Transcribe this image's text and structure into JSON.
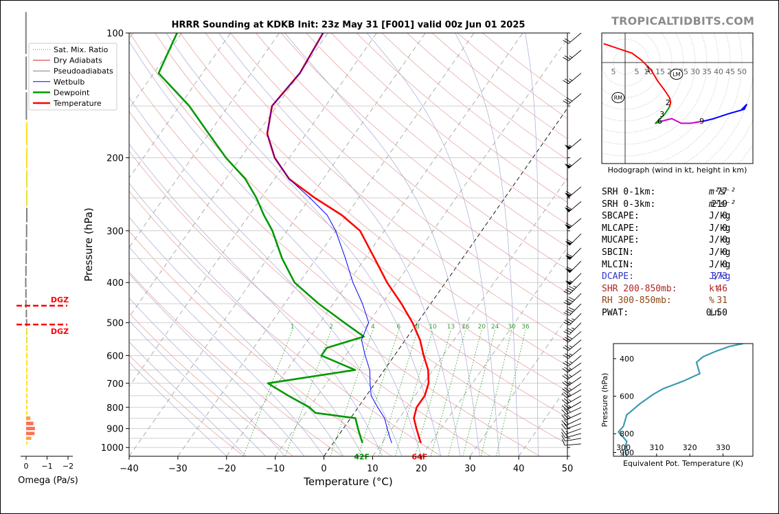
{
  "brand": "TROPICALTIDBITS.COM",
  "chart_data": [
    {
      "type": "line",
      "name": "skew-t",
      "title": "HRRR Sounding at KDKB Init: 23z May 31 [F001] valid 00z Jun 01 2025",
      "xlabel": "Temperature (°C)",
      "ylabel": "Pressure (hPa)",
      "xlim": [
        -40,
        50
      ],
      "ylim": [
        1050,
        100
      ],
      "y_scale": "log",
      "skew": true,
      "x_ticks": [
        -40,
        -30,
        -20,
        -10,
        0,
        10,
        20,
        30,
        40,
        50
      ],
      "x_tick_labels": [
        "−40",
        "−30",
        "−20",
        "−10",
        "0",
        "10",
        "20",
        "30",
        "40",
        "50"
      ],
      "y_ticks": [
        100,
        200,
        300,
        400,
        500,
        600,
        700,
        800,
        900,
        1000
      ],
      "y_tick_labels": [
        "100",
        "200",
        "300",
        "400",
        "500",
        "600",
        "700",
        "800",
        "900",
        "1000"
      ],
      "legend": {
        "position": "top-left",
        "entries": [
          {
            "label": "Sat. Mix. Ratio",
            "color": "#2ca02c",
            "style": "dotted"
          },
          {
            "label": "Dry Adiabats",
            "color": "#d62728",
            "style": "solid-thin"
          },
          {
            "label": "Pseudoadiabats",
            "color": "#7f7f7f",
            "style": "solid-thin"
          },
          {
            "label": "Wetbulb",
            "color": "#0000ff",
            "style": "solid"
          },
          {
            "label": "Dewpoint",
            "color": "#009900",
            "style": "thick"
          },
          {
            "label": "Temperature",
            "color": "#ff0000",
            "style": "thick"
          }
        ]
      },
      "mixing_ratio_labels": [
        "1",
        "2",
        "4",
        "6",
        "8",
        "10",
        "13",
        "16",
        "20",
        "24",
        "30",
        "36"
      ],
      "mixing_ratio_values": [
        1,
        2,
        4,
        6,
        8,
        10,
        13,
        16,
        20,
        24,
        30,
        36
      ],
      "surface_temp_label": "64F",
      "surface_dewpoint_label": "42F",
      "series": [
        {
          "name": "Temperature",
          "color": "#ff0000",
          "points": [
            [
              18,
              975
            ],
            [
              17,
              950
            ],
            [
              15,
              900
            ],
            [
              13,
              850
            ],
            [
              12,
              800
            ],
            [
              12,
              750
            ],
            [
              11,
              700
            ],
            [
              9,
              650
            ],
            [
              6,
              600
            ],
            [
              3,
              550
            ],
            [
              -1,
              500
            ],
            [
              -6,
              450
            ],
            [
              -12,
              400
            ],
            [
              -18,
              350
            ],
            [
              -25,
              300
            ],
            [
              -31,
              275
            ],
            [
              -39,
              250
            ],
            [
              -47,
              225
            ],
            [
              -53,
              200
            ],
            [
              -58,
              175
            ],
            [
              -61,
              150
            ],
            [
              -60,
              125
            ],
            [
              -61,
              100
            ]
          ]
        },
        {
          "name": "Dewpoint",
          "color": "#009900",
          "points": [
            [
              6,
              975
            ],
            [
              5,
              950
            ],
            [
              3,
              900
            ],
            [
              1,
              850
            ],
            [
              -8,
              825
            ],
            [
              -10,
              800
            ],
            [
              -16,
              750
            ],
            [
              -22,
              700
            ],
            [
              -6,
              650
            ],
            [
              -15,
              600
            ],
            [
              -15,
              575
            ],
            [
              -9,
              540
            ],
            [
              -15,
              500
            ],
            [
              -23,
              450
            ],
            [
              -31,
              400
            ],
            [
              -37,
              350
            ],
            [
              -43,
              300
            ],
            [
              -47,
              275
            ],
            [
              -51,
              250
            ],
            [
              -56,
              225
            ],
            [
              -63,
              200
            ],
            [
              -70,
              175
            ],
            [
              -78,
              150
            ],
            [
              -89,
              125
            ],
            [
              -91,
              100
            ]
          ]
        },
        {
          "name": "Wetbulb",
          "color": "#0000ff",
          "points": [
            [
              12,
              975
            ],
            [
              11,
              950
            ],
            [
              9,
              900
            ],
            [
              7,
              850
            ],
            [
              4,
              800
            ],
            [
              1,
              750
            ],
            [
              -1,
              700
            ],
            [
              -3,
              650
            ],
            [
              -6,
              600
            ],
            [
              -9,
              550
            ],
            [
              -10,
              500
            ],
            [
              -14,
              450
            ],
            [
              -19,
              400
            ],
            [
              -24,
              350
            ],
            [
              -30,
              300
            ],
            [
              -34,
              275
            ],
            [
              -40,
              250
            ],
            [
              -47,
              225
            ],
            [
              -53,
              200
            ],
            [
              -58,
              175
            ],
            [
              -61,
              150
            ],
            [
              -60,
              125
            ],
            [
              -61,
              100
            ]
          ]
        }
      ],
      "dgz_label": "DGZ",
      "dgz_pressures": [
        455,
        505
      ]
    },
    {
      "type": "bar",
      "name": "omega",
      "xlabel": "Omega (Pa/s)",
      "x_ticks": [
        0,
        -1,
        -2
      ],
      "x_tick_labels": [
        "0",
        "−1",
        "−2"
      ],
      "xlim": [
        0.2,
        -2.5
      ],
      "pressures": [
        975,
        950,
        925,
        900,
        875,
        850,
        825,
        800,
        775,
        750,
        725,
        700,
        675,
        650,
        625,
        600,
        575,
        550,
        525,
        500,
        475,
        450,
        425,
        400,
        375,
        350,
        325,
        300,
        275,
        250,
        225,
        200,
        175,
        150,
        125,
        100
      ],
      "values": [
        -0.02,
        -0.25,
        -0.4,
        -0.42,
        -0.35,
        -0.2,
        -0.03,
        -0.02,
        -0.01,
        -0.02,
        -0.02,
        -0.03,
        -0.04,
        -0.03,
        -0.02,
        -0.03,
        -0.02,
        -0.01,
        -0.01,
        0.01,
        0.02,
        0.04,
        0.04,
        0.05,
        0.04,
        0.03,
        0.02,
        0.01,
        0.0,
        -0.01,
        -0.01,
        -0.02,
        -0.02,
        0.02,
        0.03,
        0.04
      ]
    },
    {
      "type": "scatter",
      "name": "hodograph",
      "xlabel": "Hodograph (wind in kt, height in km)",
      "ring_labels": [
        "5",
        "5",
        "10",
        "15",
        "20",
        "25",
        "30",
        "35",
        "40",
        "45",
        "50"
      ],
      "ring_label_values": [
        -5,
        5,
        10,
        15,
        20,
        25,
        30,
        35,
        40,
        45,
        50
      ],
      "height_labels": [
        "1",
        "2",
        "3",
        "6",
        "9"
      ],
      "points": [
        [
          -9,
          8
        ],
        [
          3,
          4
        ],
        [
          7,
          1
        ],
        [
          11,
          -3
        ],
        [
          14,
          -8
        ],
        [
          17,
          -12
        ],
        [
          19,
          -15
        ],
        [
          19.5,
          -17
        ],
        [
          19,
          -19
        ],
        [
          17,
          -22
        ],
        [
          14,
          -25
        ],
        [
          13,
          -26
        ],
        [
          16,
          -25
        ],
        [
          20,
          -24
        ],
        [
          22,
          -25
        ],
        [
          24,
          -26
        ],
        [
          28,
          -26
        ],
        [
          34,
          -25
        ],
        [
          38,
          -24
        ],
        [
          44,
          -22
        ],
        [
          51,
          -20
        ],
        [
          52,
          -18
        ],
        [
          50,
          -20
        ]
      ],
      "point_labels": [
        {
          "text": "1",
          "index": 3
        },
        {
          "text": "2",
          "index": 7
        },
        {
          "text": "3",
          "index": 9
        },
        {
          "text": "6",
          "index": 12
        },
        {
          "text": "9",
          "index": 17
        }
      ],
      "segment_colors": [
        "#ff0000",
        "#ff0000",
        "#ff0000",
        "#ff0000",
        "#ff0000",
        "#ff0000",
        "#ff0000",
        "#ff0000",
        "#009900",
        "#009900",
        "#009900",
        "#009900",
        "#cc00cc",
        "#cc00cc",
        "#cc00cc",
        "#cc00cc",
        "#cc00cc",
        "#0000ff",
        "#0000ff",
        "#0000ff",
        "#0000ff",
        "#0000ff"
      ],
      "markers": [
        {
          "label": "LM",
          "u": 22,
          "v": -5
        },
        {
          "label": "RM",
          "u": -3,
          "v": -15
        }
      ],
      "xlim": [
        -10,
        52
      ],
      "ylim": [
        -28,
        12
      ]
    },
    {
      "type": "line",
      "name": "theta-e",
      "xlabel": "Equivalent Pot. Temperature (K)",
      "ylabel": "Pressure (hPa)",
      "x_ticks": [
        300,
        310,
        320,
        330
      ],
      "x_tick_labels": [
        "300",
        "310",
        "320",
        "330"
      ],
      "y_ticks": [
        400,
        600,
        800,
        900
      ],
      "y_tick_labels": [
        "400",
        "600",
        "800",
        "900"
      ],
      "xlim": [
        297,
        339
      ],
      "ylim": [
        920,
        320
      ],
      "points": [
        [
          336,
          320
        ],
        [
          332,
          335
        ],
        [
          328,
          360
        ],
        [
          324,
          390
        ],
        [
          322,
          420
        ],
        [
          322.5,
          450
        ],
        [
          323,
          480
        ],
        [
          318,
          520
        ],
        [
          312,
          560
        ],
        [
          309,
          590
        ],
        [
          305,
          640
        ],
        [
          303,
          670
        ],
        [
          301,
          700
        ],
        [
          300,
          760
        ],
        [
          298.5,
          790
        ],
        [
          299.5,
          810
        ],
        [
          301,
          840
        ],
        [
          300.5,
          880
        ],
        [
          301,
          920
        ]
      ]
    }
  ],
  "wind_barbs": [
    {
      "p": 980,
      "speed": 10,
      "dir": 265
    },
    {
      "p": 950,
      "speed": 10,
      "dir": 260
    },
    {
      "p": 925,
      "speed": 15,
      "dir": 255
    },
    {
      "p": 900,
      "speed": 15,
      "dir": 250
    },
    {
      "p": 875,
      "speed": 20,
      "dir": 250
    },
    {
      "p": 850,
      "speed": 20,
      "dir": 245
    },
    {
      "p": 825,
      "speed": 25,
      "dir": 245
    },
    {
      "p": 800,
      "speed": 25,
      "dir": 245
    },
    {
      "p": 775,
      "speed": 25,
      "dir": 240
    },
    {
      "p": 750,
      "speed": 25,
      "dir": 240
    },
    {
      "p": 725,
      "speed": 25,
      "dir": 240
    },
    {
      "p": 700,
      "speed": 25,
      "dir": 235
    },
    {
      "p": 675,
      "speed": 25,
      "dir": 235
    },
    {
      "p": 650,
      "speed": 25,
      "dir": 235
    },
    {
      "p": 625,
      "speed": 25,
      "dir": 235
    },
    {
      "p": 600,
      "speed": 25,
      "dir": 230
    },
    {
      "p": 575,
      "speed": 25,
      "dir": 230
    },
    {
      "p": 550,
      "speed": 25,
      "dir": 230
    },
    {
      "p": 525,
      "speed": 30,
      "dir": 230
    },
    {
      "p": 500,
      "speed": 35,
      "dir": 225
    },
    {
      "p": 475,
      "speed": 35,
      "dir": 225
    },
    {
      "p": 450,
      "speed": 40,
      "dir": 225
    },
    {
      "p": 425,
      "speed": 40,
      "dir": 225
    },
    {
      "p": 400,
      "speed": 45,
      "dir": 225
    },
    {
      "p": 380,
      "speed": 55,
      "dir": 225
    },
    {
      "p": 355,
      "speed": 60,
      "dir": 225
    },
    {
      "p": 330,
      "speed": 60,
      "dir": 225
    },
    {
      "p": 305,
      "speed": 60,
      "dir": 225
    },
    {
      "p": 280,
      "speed": 60,
      "dir": 230
    },
    {
      "p": 255,
      "speed": 60,
      "dir": 230
    },
    {
      "p": 235,
      "speed": 60,
      "dir": 230
    },
    {
      "p": 200,
      "speed": 55,
      "dir": 230
    },
    {
      "p": 180,
      "speed": 55,
      "dir": 230
    },
    {
      "p": 140,
      "speed": 30,
      "dir": 230
    },
    {
      "p": 125,
      "speed": 25,
      "dir": 230
    },
    {
      "p": 110,
      "speed": 25,
      "dir": 230
    },
    {
      "p": 100,
      "speed": 20,
      "dir": 230
    }
  ],
  "stats": [
    {
      "label": "SRH 0-1km:",
      "value": "77",
      "unit": "m²s⁻²",
      "color": "#000000"
    },
    {
      "label": "SRH 0-3km:",
      "value": "219",
      "unit": "m²s⁻²",
      "color": "#000000"
    },
    {
      "label": "SBCAPE:",
      "value": "0",
      "unit": "J/kg",
      "color": "#000000"
    },
    {
      "label": "MLCAPE:",
      "value": "0",
      "unit": "J/kg",
      "color": "#000000"
    },
    {
      "label": "MUCAPE:",
      "value": "0",
      "unit": "J/kg",
      "color": "#000000"
    },
    {
      "label": "SBCIN:",
      "value": "0",
      "unit": "J/kg",
      "color": "#000000"
    },
    {
      "label": "MLCIN:",
      "value": "0",
      "unit": "J/kg",
      "color": "#000000"
    },
    {
      "label": "DCAPE:",
      "value": "373",
      "unit": "J/kg",
      "color": "#3333cc"
    },
    {
      "label": "SHR 200-850mb:",
      "value": "46",
      "unit": "kt",
      "color": "#b22222"
    },
    {
      "label": "RH 300-850mb:",
      "value": "31",
      "unit": "%",
      "color": "#8b4513"
    },
    {
      "label": "PWAT:",
      "value": "0.50",
      "unit": "in",
      "color": "#000000"
    }
  ]
}
